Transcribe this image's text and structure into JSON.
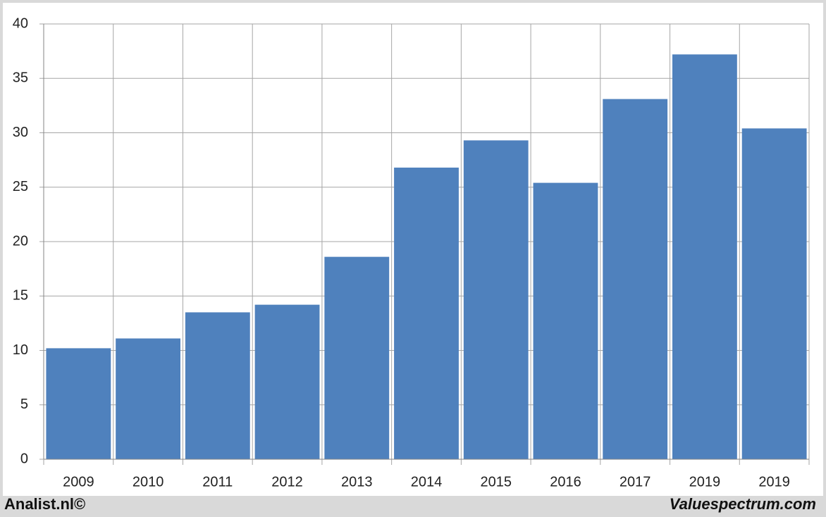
{
  "chart_data": {
    "type": "bar",
    "categories": [
      "2009",
      "2010",
      "2011",
      "2012",
      "2013",
      "2014",
      "2015",
      "2016",
      "2017",
      "2019",
      "2019"
    ],
    "values": [
      10.2,
      11.1,
      13.5,
      14.2,
      18.6,
      26.8,
      29.3,
      25.4,
      33.1,
      37.2,
      30.4
    ],
    "color": "#4f81bd",
    "ylim": [
      0,
      40
    ],
    "yticks": [
      0,
      5,
      10,
      15,
      20,
      25,
      30,
      35,
      40
    ],
    "grid": true
  },
  "footer": {
    "left": "Analist.nl©",
    "right": "Valuespectrum.com"
  }
}
